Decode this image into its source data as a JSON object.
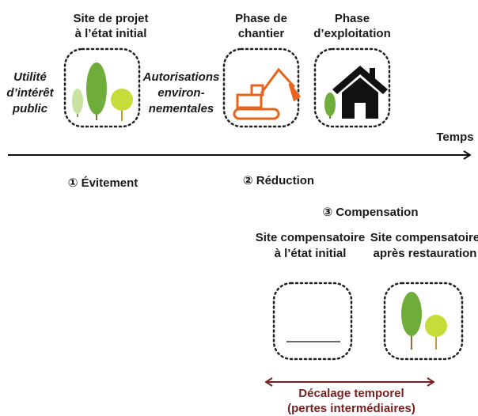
{
  "stages": [
    {
      "title": [
        "Site de projet",
        "à l’état initial"
      ]
    },
    {
      "title": [
        "Phase de",
        "chantier"
      ]
    },
    {
      "title": [
        "Phase",
        "d’exploitation"
      ]
    }
  ],
  "conditions": [
    [
      "Utilité",
      "d’intérêt",
      "public"
    ],
    [
      "Autorisations",
      "environ-",
      "nementales"
    ]
  ],
  "axis_label": "Temps",
  "steps": [
    "① Évitement",
    "② Réduction",
    "③ Compensation"
  ],
  "compensation_sites": [
    [
      "Site compensatoire",
      "à l’état initial"
    ],
    [
      "Site compensatoire",
      "après restauration"
    ]
  ],
  "delay": [
    "Décalage temporel",
    "(pertes intermédiaires)"
  ]
}
